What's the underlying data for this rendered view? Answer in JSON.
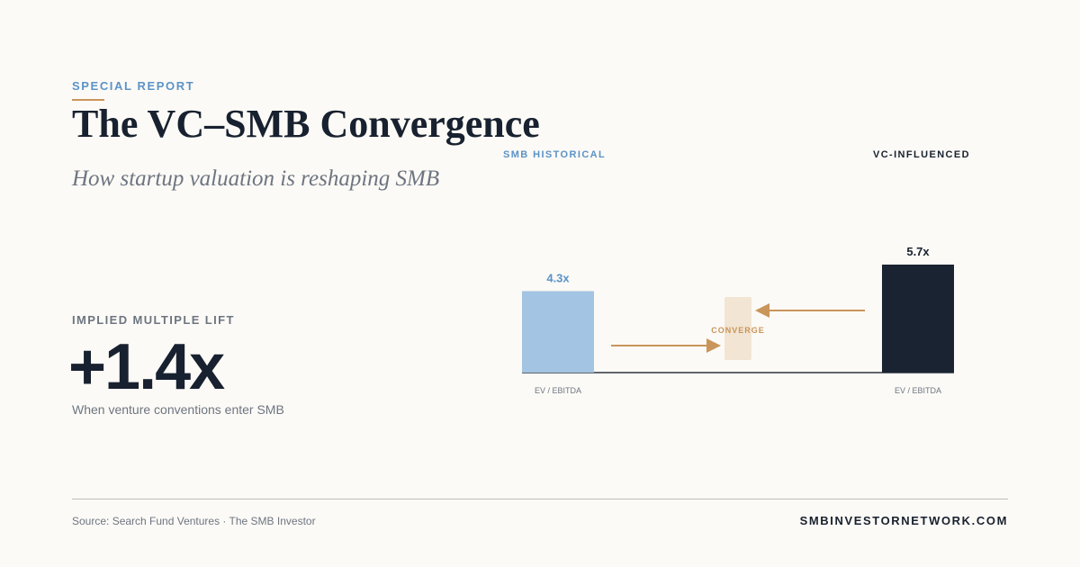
{
  "header": {
    "eyebrow": "SPECIAL REPORT",
    "title": "The VC–SMB Convergence",
    "subtitle": "How startup valuation is reshaping SMB"
  },
  "stat": {
    "label": "IMPLIED MULTIPLE LIFT",
    "value": "+1.4x",
    "caption": "When venture conventions enter SMB"
  },
  "chart_data": {
    "type": "bar",
    "unit": "x",
    "categories": [
      "SMB HISTORICAL",
      "VC-INFLUENCED"
    ],
    "values": [
      4.3,
      5.7
    ],
    "value_labels": [
      "4.3x",
      "5.7x"
    ],
    "xlabels": [
      "EV / EBITDA",
      "EV / EBITDA"
    ],
    "annotation": "CONVERGE",
    "colors": [
      "#a3c4e2",
      "#1a2332"
    ],
    "label_colors": [
      "#5b93c7",
      "#18212f"
    ],
    "accent": "#c9955a"
  },
  "footer": {
    "source": "Source: Search Fund Ventures · The SMB Investor",
    "site": "SMBINVESTORNETWORK.COM"
  }
}
